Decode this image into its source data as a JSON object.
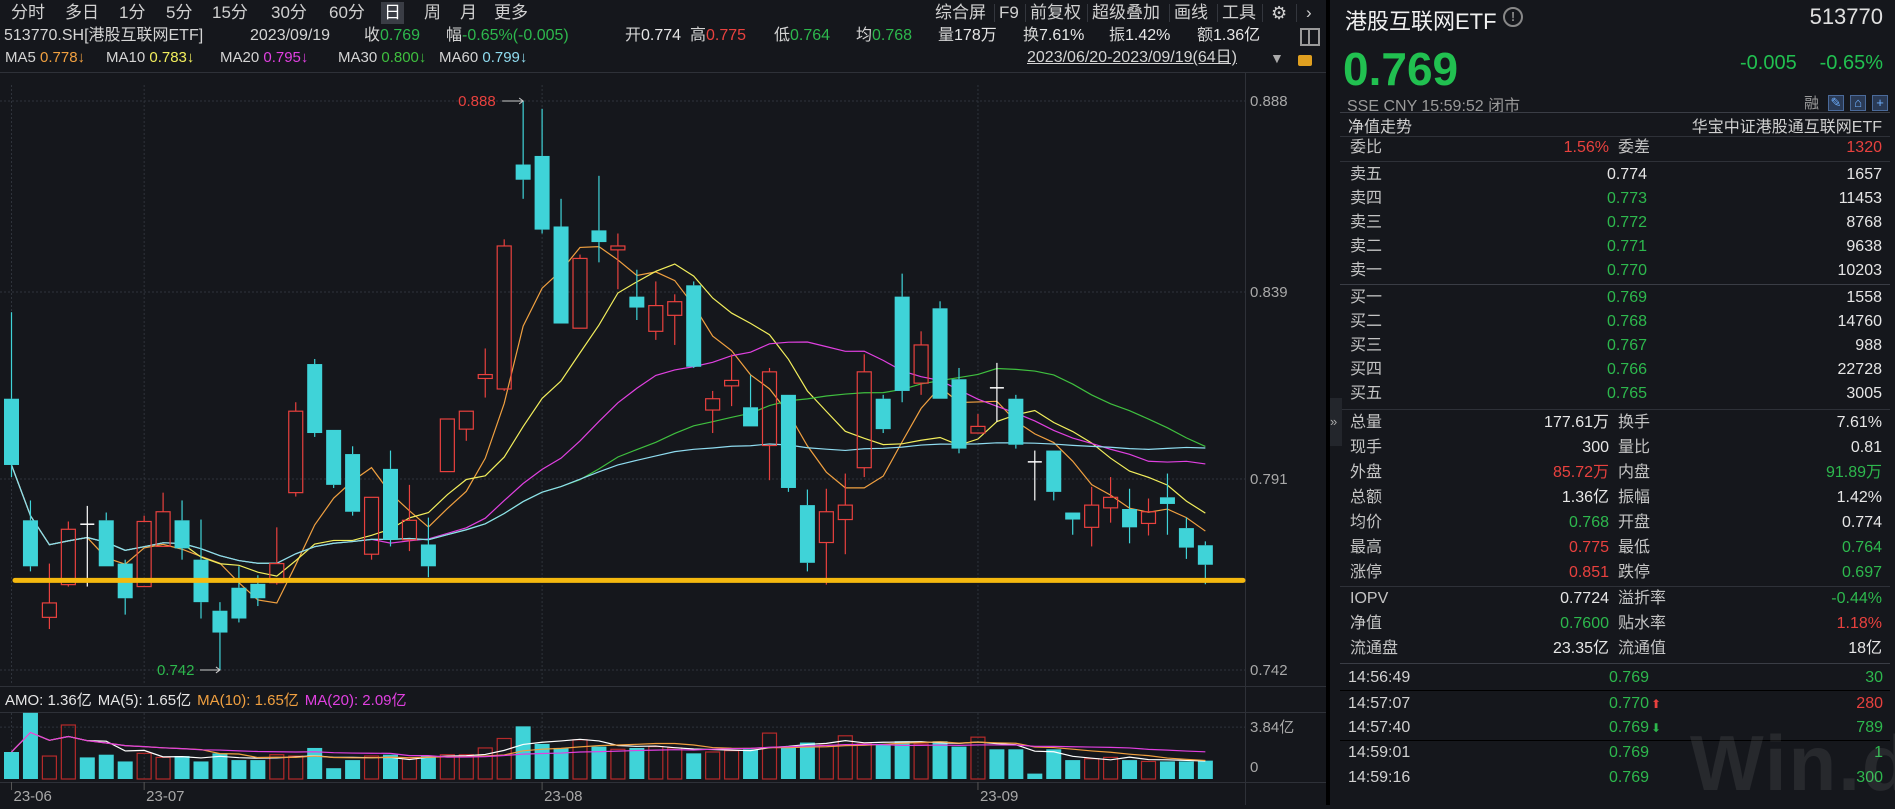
{
  "toolbar": {
    "periods": [
      "分时",
      "多日",
      "1分",
      "5分",
      "15分",
      "30分",
      "60分",
      "日",
      "周",
      "月",
      "更多"
    ],
    "active_period": "日",
    "tools": [
      "综合屏",
      "F9",
      "前复权",
      "超级叠加",
      "画线",
      "工具"
    ],
    "gear_icon": "gear-icon",
    "collapse_icon": "chevron-right-icon"
  },
  "quote_bar": {
    "code_name": "513770.SH[港股互联网ETF]",
    "date": "2023/09/19",
    "items": [
      {
        "label": "收",
        "value": "0.769",
        "color": "green"
      },
      {
        "label": "幅",
        "value": "-0.65%(-0.005)",
        "color": "green"
      },
      {
        "label": "开",
        "value": "0.774",
        "color": "white"
      },
      {
        "label": "高",
        "value": "0.775",
        "color": "red"
      },
      {
        "label": "低",
        "value": "0.764",
        "color": "green"
      },
      {
        "label": "均",
        "value": "0.768",
        "color": "green"
      },
      {
        "label": "量",
        "value": "178万",
        "color": "white"
      },
      {
        "label": "换",
        "value": "7.61%",
        "color": "white"
      },
      {
        "label": "振",
        "value": "1.42%",
        "color": "white"
      },
      {
        "label": "额",
        "value": "1.36亿",
        "color": "white"
      }
    ]
  },
  "ma_bar": {
    "items": [
      {
        "label": "MA5",
        "value": "0.778↓",
        "color": "#f0a040"
      },
      {
        "label": "MA10",
        "value": "0.783↓",
        "color": "#f2ee5c"
      },
      {
        "label": "MA20",
        "value": "0.795↓",
        "color": "#e040e0"
      },
      {
        "label": "MA30",
        "value": "0.800↓",
        "color": "#3fbf3f"
      },
      {
        "label": "MA60",
        "value": "0.799↓",
        "color": "#8fdcf0"
      }
    ],
    "date_range": "2023/06/20-2023/09/19(64日)"
  },
  "colors": {
    "up": "#e8413e",
    "down": "#3fd3d8",
    "green": "#2db84d",
    "red": "#e8413e",
    "highlight_line": "#f5b90f"
  },
  "chart_data": {
    "type": "candlestick",
    "price_axis": {
      "ticks": [
        "0.888",
        "0.839",
        "0.791",
        "0.742"
      ],
      "range": [
        0.742,
        0.888
      ]
    },
    "x_ticks": [
      {
        "label": "23-06",
        "index": 0
      },
      {
        "label": "23-07",
        "index": 7
      },
      {
        "label": "23-08",
        "index": 28
      },
      {
        "label": "23-09",
        "index": 51
      }
    ],
    "candles_ohlc": [
      [
        0.8116,
        0.8338,
        0.7915,
        0.7946
      ],
      [
        0.7804,
        0.7855,
        0.7673,
        0.7686
      ],
      [
        0.7555,
        0.7693,
        0.7525,
        0.7592
      ],
      [
        0.7639,
        0.7801,
        0.7634,
        0.7781
      ],
      [
        0.7794,
        0.7841,
        0.7634,
        0.7794
      ],
      [
        0.7804,
        0.7824,
        0.7686,
        0.7686
      ],
      [
        0.7693,
        0.7703,
        0.7562,
        0.7604
      ],
      [
        0.7634,
        0.7816,
        0.7634,
        0.7801
      ],
      [
        0.7737,
        0.7875,
        0.7737,
        0.7826
      ],
      [
        0.7804,
        0.7855,
        0.7703,
        0.7732
      ],
      [
        0.7703,
        0.7806,
        0.7552,
        0.7594
      ],
      [
        0.7572,
        0.7594,
        0.742,
        0.7516
      ],
      [
        0.7631,
        0.7686,
        0.7542,
        0.7552
      ],
      [
        0.7641,
        0.7663,
        0.7584,
        0.7604
      ],
      [
        0.7644,
        0.7786,
        0.7639,
        0.7693
      ],
      [
        0.7875,
        0.8107,
        0.7865,
        0.8084
      ],
      [
        0.8205,
        0.8218,
        0.8018,
        0.8028
      ],
      [
        0.8036,
        0.8036,
        0.7887,
        0.7895
      ],
      [
        0.7974,
        0.7994,
        0.7816,
        0.7826
      ],
      [
        0.7717,
        0.7863,
        0.7703,
        0.7863
      ],
      [
        0.7936,
        0.7983,
        0.7737,
        0.7754
      ],
      [
        0.7754,
        0.7895,
        0.7725,
        0.7804
      ],
      [
        0.7742,
        0.7811,
        0.7658,
        0.7686
      ],
      [
        0.7929,
        0.8064,
        0.7929,
        0.8064
      ],
      [
        0.8038,
        0.8084,
        0.8008,
        0.8084
      ],
      [
        0.8168,
        0.8245,
        0.8119,
        0.8178
      ],
      [
        0.8141,
        0.8525,
        0.8136,
        0.8508
      ],
      [
        0.8717,
        0.888,
        0.8629,
        0.8678
      ],
      [
        0.8739,
        0.886,
        0.854,
        0.855
      ],
      [
        0.8558,
        0.8629,
        0.8309,
        0.8309
      ],
      [
        0.8297,
        0.8486,
        0.8297,
        0.8476
      ],
      [
        0.8548,
        0.8688,
        0.8466,
        0.8518
      ],
      [
        0.8498,
        0.854,
        0.8397,
        0.8508
      ],
      [
        0.8378,
        0.8447,
        0.8318,
        0.835
      ],
      [
        0.8289,
        0.8417,
        0.8267,
        0.8355
      ],
      [
        0.833,
        0.8384,
        0.8254,
        0.8365
      ],
      [
        0.8407,
        0.8417,
        0.8195,
        0.8198
      ],
      [
        0.8087,
        0.8136,
        0.8028,
        0.8116
      ],
      [
        0.8149,
        0.823,
        0.8097,
        0.8163
      ],
      [
        0.8094,
        0.8176,
        0.8045,
        0.8045
      ],
      [
        0.7996,
        0.8195,
        0.7907,
        0.8185
      ],
      [
        0.8126,
        0.8126,
        0.7877,
        0.7887
      ],
      [
        0.7843,
        0.7883,
        0.7673,
        0.7695
      ],
      [
        0.7747,
        0.7885,
        0.7639,
        0.7826
      ],
      [
        0.7806,
        0.7924,
        0.7717,
        0.7843
      ],
      [
        0.7939,
        0.823,
        0.7915,
        0.8185
      ],
      [
        0.8116,
        0.8126,
        0.8028,
        0.8038
      ],
      [
        0.8378,
        0.8437,
        0.8107,
        0.8136
      ],
      [
        0.8156,
        0.8289,
        0.8126,
        0.8254
      ],
      [
        0.8348,
        0.8366,
        0.8116,
        0.8116
      ],
      [
        0.8166,
        0.8195,
        0.7976,
        0.7988
      ],
      [
        0.8028,
        0.8077,
        0.8028,
        0.8045
      ],
      [
        0.8144,
        0.8208,
        0.8057,
        0.8144
      ],
      [
        0.8116,
        0.8126,
        0.7988,
        0.7998
      ],
      [
        0.7954,
        0.7983,
        0.7855,
        0.7954
      ],
      [
        0.7983,
        0.7983,
        0.7855,
        0.7877
      ],
      [
        0.7824,
        0.7824,
        0.7767,
        0.7806
      ],
      [
        0.7786,
        0.789,
        0.7737,
        0.7843
      ],
      [
        0.7836,
        0.7915,
        0.7798,
        0.7863
      ],
      [
        0.7833,
        0.7885,
        0.7745,
        0.7786
      ],
      [
        0.7796,
        0.786,
        0.7765,
        0.7826
      ],
      [
        0.7863,
        0.7924,
        0.7767,
        0.7846
      ],
      [
        0.7784,
        0.7811,
        0.7705,
        0.7734
      ],
      [
        0.774,
        0.775,
        0.764,
        0.769
      ]
    ],
    "doji_white_indices": [
      4,
      52,
      54
    ],
    "ma_periods": [
      5,
      10,
      20,
      30,
      60
    ],
    "high_annotation": {
      "label": "0.888",
      "index": 27
    },
    "low_annotation": {
      "label": "0.742",
      "index": 11
    },
    "support_line_price": 0.765,
    "volume": {
      "unit": "亿",
      "axis_ticks": [
        "3.84亿",
        "0"
      ],
      "values": [
        2.0,
        4.9,
        1.7,
        4.0,
        1.6,
        1.8,
        1.3,
        1.9,
        1.6,
        1.7,
        1.3,
        1.9,
        1.4,
        1.4,
        1.8,
        1.7,
        2.3,
        0.8,
        1.4,
        1.7,
        1.8,
        1.5,
        1.7,
        1.8,
        1.8,
        2.3,
        3.0,
        3.9,
        2.6,
        2.3,
        2.9,
        2.4,
        2.2,
        2.3,
        2.4,
        2.3,
        1.9,
        2.0,
        2.1,
        2.2,
        3.4,
        2.4,
        2.7,
        2.5,
        3.2,
        2.6,
        2.6,
        2.8,
        2.6,
        2.8,
        2.4,
        3.1,
        2.2,
        2.2,
        0.4,
        2.2,
        1.4,
        1.5,
        1.6,
        1.4,
        1.3,
        1.3,
        1.3,
        1.36
      ],
      "legend": [
        {
          "text": "AMO: 1.36亿",
          "color": "#e6e6e6"
        },
        {
          "text": "MA(5): 1.65亿",
          "color": "#e6e6e6"
        },
        {
          "text": "MA(10): 1.65亿",
          "color": "#f0a040"
        },
        {
          "text": "MA(20): 2.09亿",
          "color": "#e040e0"
        }
      ]
    }
  },
  "right_panel": {
    "name": "港股互联网ETF",
    "code": "513770",
    "price": "0.769",
    "change": "-0.005",
    "change_pct": "-0.65%",
    "status_line": "SSE  CNY  15:59:52  闭市",
    "margin_badge": "融",
    "nav_trend": "净值走势",
    "fund_full_name": "华宝中证港股通互联网ETF",
    "weibi": {
      "label": "委比",
      "value": "1.56%",
      "label2": "委差",
      "value2": "1320"
    },
    "asks": [
      {
        "label": "卖五",
        "price": "0.774",
        "vol": "1657",
        "color": "white"
      },
      {
        "label": "卖四",
        "price": "0.773",
        "vol": "11453",
        "color": "green"
      },
      {
        "label": "卖三",
        "price": "0.772",
        "vol": "8768",
        "color": "green"
      },
      {
        "label": "卖二",
        "price": "0.771",
        "vol": "9638",
        "color": "green"
      },
      {
        "label": "卖一",
        "price": "0.770",
        "vol": "10203",
        "color": "green"
      }
    ],
    "bids": [
      {
        "label": "买一",
        "price": "0.769",
        "vol": "1558",
        "color": "green"
      },
      {
        "label": "买二",
        "price": "0.768",
        "vol": "14760",
        "color": "green"
      },
      {
        "label": "买三",
        "price": "0.767",
        "vol": "988",
        "color": "green"
      },
      {
        "label": "买四",
        "price": "0.766",
        "vol": "22728",
        "color": "green"
      },
      {
        "label": "买五",
        "price": "0.765",
        "vol": "3005",
        "color": "green"
      }
    ],
    "stats": [
      {
        "l1": "总量",
        "v1": "177.61万",
        "c1": "white",
        "l2": "换手",
        "v2": "7.61%",
        "c2": "white"
      },
      {
        "l1": "现手",
        "v1": "300",
        "c1": "white",
        "l2": "量比",
        "v2": "0.81",
        "c2": "white"
      },
      {
        "l1": "外盘",
        "v1": "85.72万",
        "c1": "red",
        "l2": "内盘",
        "v2": "91.89万",
        "c2": "green"
      },
      {
        "l1": "总额",
        "v1": "1.36亿",
        "c1": "white",
        "l2": "振幅",
        "v2": "1.42%",
        "c2": "white"
      },
      {
        "l1": "均价",
        "v1": "0.768",
        "c1": "green",
        "l2": "开盘",
        "v2": "0.774",
        "c2": "white"
      },
      {
        "l1": "最高",
        "v1": "0.775",
        "c1": "red",
        "l2": "最低",
        "v2": "0.764",
        "c2": "green"
      },
      {
        "l1": "涨停",
        "v1": "0.851",
        "c1": "red",
        "l2": "跌停",
        "v2": "0.697",
        "c2": "green"
      }
    ],
    "fund_stats": [
      {
        "l1": "IOPV",
        "v1": "0.7724",
        "c1": "white",
        "l2": "溢折率",
        "v2": "-0.44%",
        "c2": "green"
      },
      {
        "l1": "净值",
        "v1": "0.7600",
        "c1": "green",
        "l2": "贴水率",
        "v2": "1.18%",
        "c2": "red"
      },
      {
        "l1": "流通盘",
        "v1": "23.35亿",
        "c1": "white",
        "l2": "流通值",
        "v2": "18亿",
        "c2": "white"
      }
    ],
    "ticks": [
      {
        "time": "14:56:49",
        "price": "0.769",
        "arrow": "",
        "vol": "30",
        "vcolor": "green"
      },
      {
        "time": "14:57:07",
        "price": "0.770",
        "arrow": "up",
        "vol": "280",
        "vcolor": "red"
      },
      {
        "time": "14:57:40",
        "price": "0.769",
        "arrow": "down",
        "vol": "789",
        "vcolor": "green"
      },
      {
        "time": "14:59:01",
        "price": "0.769",
        "arrow": "",
        "vol": "1",
        "vcolor": "green"
      },
      {
        "time": "14:59:16",
        "price": "0.769",
        "arrow": "",
        "vol": "300",
        "vcolor": "green"
      }
    ],
    "watermark": "Win.d"
  }
}
